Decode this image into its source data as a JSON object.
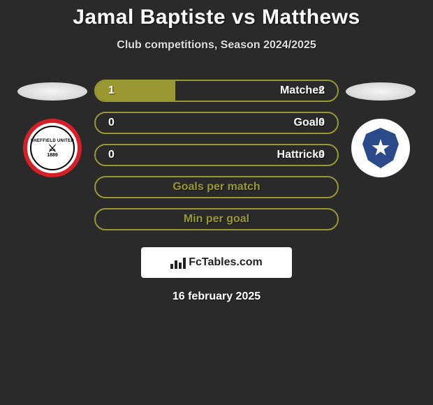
{
  "title": "Jamal Baptiste vs Matthews",
  "subtitle": "Club competitions, Season 2024/2025",
  "colors": {
    "background": "#2a2a2a",
    "accent": "#9a9832",
    "text": "#ffffff",
    "left_club_primary": "#d62027",
    "right_club_primary": "#2a4a8a"
  },
  "left_club": {
    "name": "Sheffield United",
    "year": "1889"
  },
  "right_club": {
    "name": "Portsmouth"
  },
  "stats": [
    {
      "label": "Matches",
      "left_value": "1",
      "right_value": "2",
      "fill_left_pct": 33,
      "border_color": "#9a9832",
      "has_values": true
    },
    {
      "label": "Goals",
      "left_value": "0",
      "right_value": "0",
      "fill_left_pct": 0,
      "border_color": "#9a9832",
      "has_values": true
    },
    {
      "label": "Hattricks",
      "left_value": "0",
      "right_value": "0",
      "fill_left_pct": 0,
      "border_color": "#9a9832",
      "has_values": true
    },
    {
      "label": "Goals per match",
      "has_values": false,
      "border_color": "#9a9832"
    },
    {
      "label": "Min per goal",
      "has_values": false,
      "border_color": "#9a9832"
    }
  ],
  "source": "FcTables.com",
  "date": "16 february 2025"
}
